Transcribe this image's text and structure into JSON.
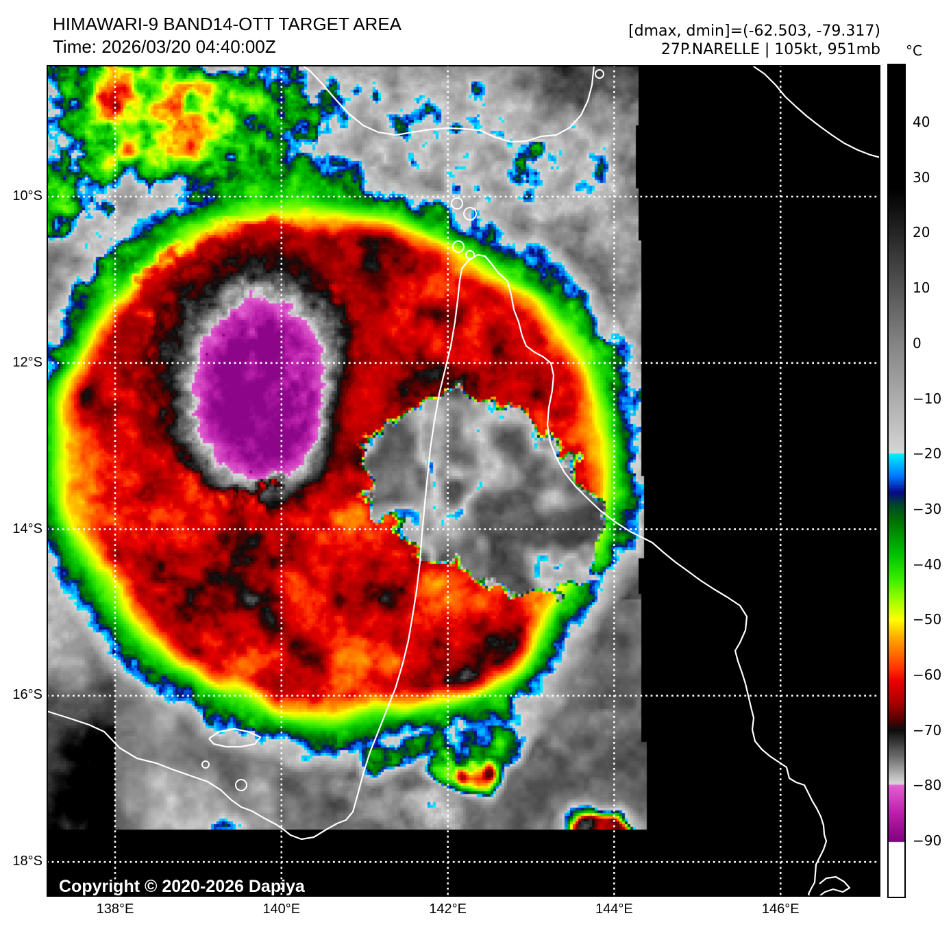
{
  "header": {
    "title": "HIMAWARI-9 BAND14-OTT TARGET AREA",
    "time_line": "Time: 2026/03/20 04:40:00Z",
    "stats_line": "[dmax, dmin]=(-62.503, -79.317)",
    "storm_line": "27P.NARELLE | 105kt, 951mb"
  },
  "colorbar": {
    "unit_label": "°C",
    "tick_labels": [
      "40",
      "30",
      "20",
      "10",
      "0",
      "−10",
      "−20",
      "−30",
      "−40",
      "−50",
      "−60",
      "−70",
      "−80",
      "−90"
    ],
    "tick_values": [
      40,
      30,
      20,
      10,
      0,
      -10,
      -20,
      -30,
      -40,
      -50,
      -60,
      -70,
      -80,
      -90
    ],
    "gradient_stops": [
      [
        50,
        "#000000"
      ],
      [
        28,
        "#000000"
      ],
      [
        0,
        "#848484"
      ],
      [
        -19.9,
        "#d6d6d6"
      ],
      [
        -20,
        "#00f0ff"
      ],
      [
        -24,
        "#0078ff"
      ],
      [
        -27,
        "#080888"
      ],
      [
        -29,
        "#004030"
      ],
      [
        -32,
        "#007000"
      ],
      [
        -38,
        "#00c000"
      ],
      [
        -43,
        "#40f000"
      ],
      [
        -47,
        "#b0ff00"
      ],
      [
        -50,
        "#ffff00"
      ],
      [
        -53,
        "#ffb000"
      ],
      [
        -56,
        "#ff7000"
      ],
      [
        -59,
        "#ff3000"
      ],
      [
        -61,
        "#e80000"
      ],
      [
        -65,
        "#a80000"
      ],
      [
        -68,
        "#580000"
      ],
      [
        -70,
        "#0c0c0c"
      ],
      [
        -73,
        "#484848"
      ],
      [
        -76,
        "#888888"
      ],
      [
        -79.6,
        "#dadada"
      ],
      [
        -80,
        "#e460d2"
      ],
      [
        -85,
        "#ba20aa"
      ],
      [
        -90,
        "#820082"
      ],
      [
        -90.01,
        "#ffffff"
      ],
      [
        -100,
        "#ffffff"
      ]
    ]
  },
  "map": {
    "x_ticks": [
      {
        "label": "138°E",
        "lon": 138
      },
      {
        "label": "140°E",
        "lon": 140
      },
      {
        "label": "142°E",
        "lon": 142
      },
      {
        "label": "144°E",
        "lon": 144
      },
      {
        "label": "146°E",
        "lon": 146
      }
    ],
    "y_ticks": [
      {
        "label": "10°S",
        "lat": 10
      },
      {
        "label": "12°S",
        "lat": 12
      },
      {
        "label": "14°S",
        "lat": 14
      },
      {
        "label": "16°S",
        "lat": 16
      },
      {
        "label": "18°S",
        "lat": 18
      }
    ],
    "copyright": "Copyright © 2020-2026 Dapiya"
  }
}
